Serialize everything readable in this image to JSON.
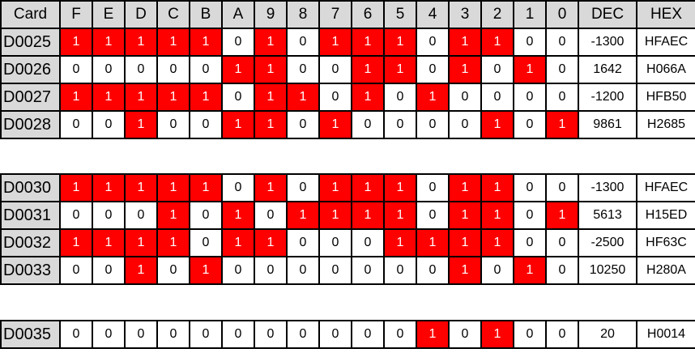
{
  "header": [
    "Card",
    "F",
    "E",
    "D",
    "C",
    "B",
    "A",
    "9",
    "8",
    "7",
    "6",
    "5",
    "4",
    "3",
    "2",
    "1",
    "0",
    "DEC",
    "HEX"
  ],
  "colors": {
    "set_bit": "#ff0000",
    "label_bg": "#d9d9d9"
  },
  "groups": [
    [
      {
        "card": "D0025",
        "bits": [
          "1",
          "1",
          "1",
          "1",
          "1",
          "0",
          "1",
          "0",
          "1",
          "1",
          "1",
          "0",
          "1",
          "1",
          "0",
          "0"
        ],
        "dec": "-1300",
        "hex": "HFAEC"
      },
      {
        "card": "D0026",
        "bits": [
          "0",
          "0",
          "0",
          "0",
          "0",
          "1",
          "1",
          "0",
          "0",
          "1",
          "1",
          "0",
          "1",
          "0",
          "1",
          "0"
        ],
        "dec": "1642",
        "hex": "H066A"
      },
      {
        "card": "D0027",
        "bits": [
          "1",
          "1",
          "1",
          "1",
          "1",
          "0",
          "1",
          "1",
          "0",
          "1",
          "0",
          "1",
          "0",
          "0",
          "0",
          "0"
        ],
        "dec": "-1200",
        "hex": "HFB50"
      },
      {
        "card": "D0028",
        "bits": [
          "0",
          "0",
          "1",
          "0",
          "0",
          "1",
          "1",
          "0",
          "1",
          "0",
          "0",
          "0",
          "0",
          "1",
          "0",
          "1"
        ],
        "dec": "9861",
        "hex": "H2685"
      }
    ],
    [
      {
        "card": "D0030",
        "bits": [
          "1",
          "1",
          "1",
          "1",
          "1",
          "0",
          "1",
          "0",
          "1",
          "1",
          "1",
          "0",
          "1",
          "1",
          "0",
          "0"
        ],
        "dec": "-1300",
        "hex": "HFAEC"
      },
      {
        "card": "D0031",
        "bits": [
          "0",
          "0",
          "0",
          "1",
          "0",
          "1",
          "0",
          "1",
          "1",
          "1",
          "1",
          "0",
          "1",
          "1",
          "0",
          "1"
        ],
        "dec": "5613",
        "hex": "H15ED"
      },
      {
        "card": "D0032",
        "bits": [
          "1",
          "1",
          "1",
          "1",
          "0",
          "1",
          "1",
          "0",
          "0",
          "0",
          "1",
          "1",
          "1",
          "1",
          "0",
          "0"
        ],
        "dec": "-2500",
        "hex": "HF63C"
      },
      {
        "card": "D0033",
        "bits": [
          "0",
          "0",
          "1",
          "0",
          "1",
          "0",
          "0",
          "0",
          "0",
          "0",
          "0",
          "0",
          "1",
          "0",
          "1",
          "0"
        ],
        "dec": "10250",
        "hex": "H280A"
      }
    ],
    [
      {
        "card": "D0035",
        "bits": [
          "0",
          "0",
          "0",
          "0",
          "0",
          "0",
          "0",
          "0",
          "0",
          "0",
          "0",
          "1",
          "0",
          "1",
          "0",
          "0"
        ],
        "dec": "20",
        "hex": "H0014"
      }
    ]
  ]
}
